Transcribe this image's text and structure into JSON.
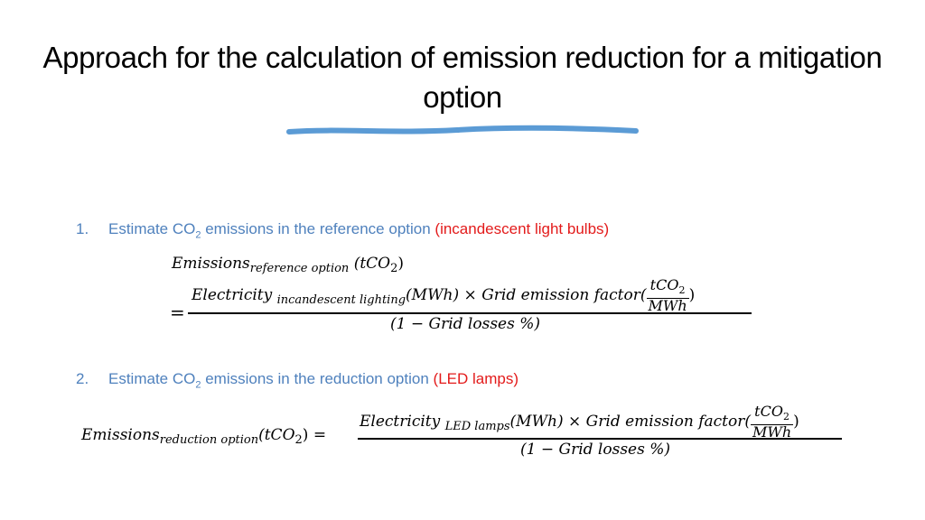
{
  "slide": {
    "title": "Approach for the calculation of emission reduction for a mitigation option",
    "steps": [
      {
        "number": "1.",
        "text_before": "Estimate CO",
        "subscript": "2",
        "text_after": " emissions in the reference option ",
        "highlight": "(incandescent light bulbs)",
        "highlight_color": "#e31b1b"
      },
      {
        "number": "2.",
        "text_before": "Estimate CO",
        "subscript": "2",
        "text_after": " emissions in the reduction option ",
        "highlight": "(LED lamps)",
        "highlight_color": "#e31b1b"
      }
    ],
    "equation1": {
      "lhs_var": "Emissions",
      "lhs_sub": "reference option",
      "lhs_unit": "(tCO",
      "lhs_unit_sub": "2",
      "lhs_unit_close": ")",
      "equals": "=",
      "num_var": "Electricity",
      "num_sub": "incandescent lighting",
      "num_unit": "(MWh) × Grid emission factor(",
      "frac_top": "tCO",
      "frac_top_sub": "2",
      "frac_bottom": "MWh",
      "num_close": ")",
      "denominator": "(1 − Grid losses %)"
    },
    "equation2": {
      "lhs_var": "Emissions",
      "lhs_sub": "reduction option",
      "lhs_unit": "(tCO",
      "lhs_unit_sub": "2",
      "lhs_unit_close": ") =",
      "num_var": "Electricity",
      "num_sub": "LED lamps",
      "num_unit": "(MWh) × Grid emission factor(",
      "frac_top": "tCO",
      "frac_top_sub": "2",
      "frac_bottom": "MWh",
      "num_close": ")",
      "denominator": "(1 − Grid losses %)"
    },
    "colors": {
      "step_text": "#4f81bd",
      "highlight": "#e31b1b",
      "underline": "#5b9bd5"
    }
  }
}
